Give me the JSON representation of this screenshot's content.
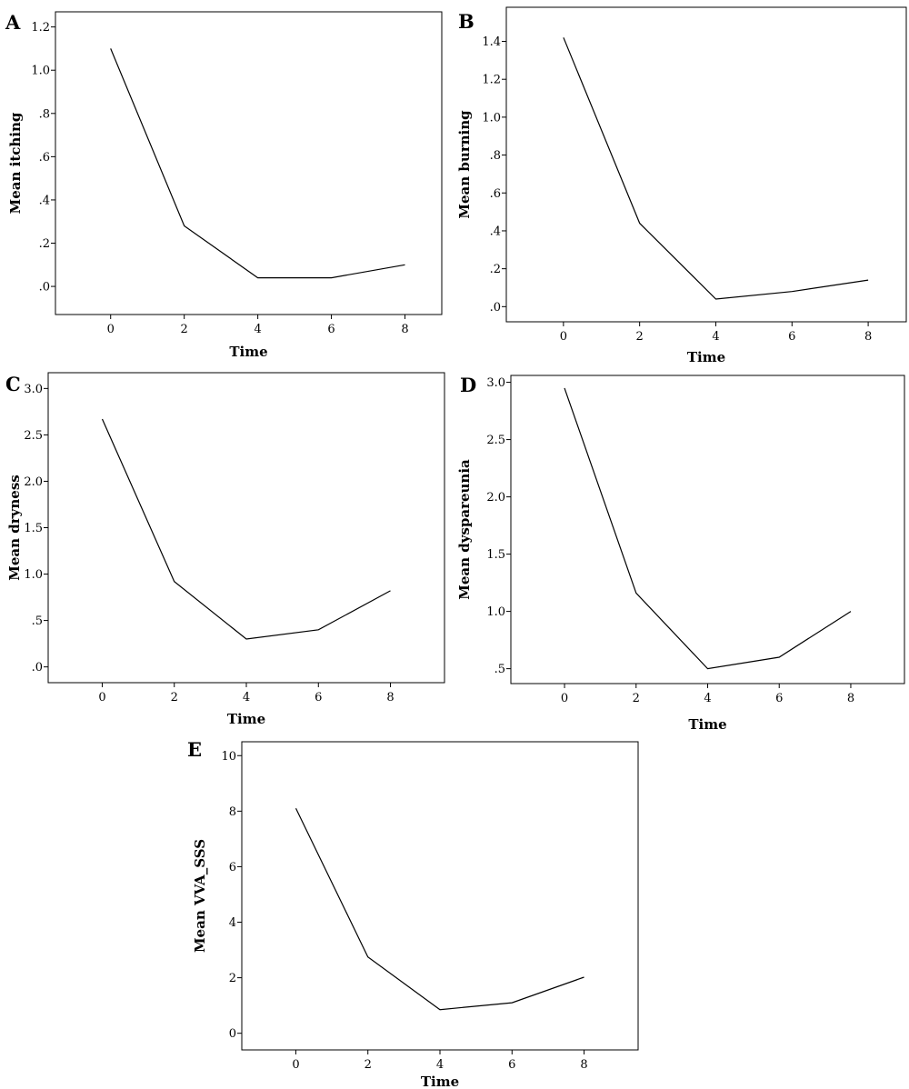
{
  "chart_data": [
    {
      "panel": "A",
      "type": "line",
      "xlabel": "Time",
      "ylabel": "Mean itching",
      "x": [
        0,
        2,
        4,
        6,
        8
      ],
      "values": [
        1.1,
        0.28,
        0.04,
        0.04,
        0.1
      ],
      "xticks": [
        0,
        2,
        4,
        6,
        8
      ],
      "xtick_labels": [
        "0",
        "2",
        "4",
        "6",
        "8"
      ],
      "xlim": [
        -1.5,
        9.0
      ],
      "yticks": [
        0.0,
        0.2,
        0.4,
        0.6,
        0.8,
        1.0,
        1.2
      ],
      "ytick_labels": [
        ".0",
        ".2",
        ".4",
        ".6",
        ".8",
        "1.0",
        "1.2"
      ],
      "ylim": [
        -0.13,
        1.27
      ],
      "grid": false
    },
    {
      "panel": "B",
      "type": "line",
      "xlabel": "Time",
      "ylabel": "Mean burning",
      "x": [
        0,
        2,
        4,
        6,
        8
      ],
      "values": [
        1.42,
        0.44,
        0.04,
        0.08,
        0.14
      ],
      "xticks": [
        0,
        2,
        4,
        6,
        8
      ],
      "xtick_labels": [
        "0",
        "2",
        "4",
        "6",
        "8"
      ],
      "xlim": [
        -1.5,
        9.0
      ],
      "yticks": [
        0.0,
        0.2,
        0.4,
        0.6,
        0.8,
        1.0,
        1.2,
        1.4
      ],
      "ytick_labels": [
        ".0",
        ".2",
        ".4",
        ".6",
        ".8",
        "1.0",
        "1.2",
        "1.4"
      ],
      "ylim": [
        -0.08,
        1.58
      ],
      "grid": false
    },
    {
      "panel": "C",
      "type": "line",
      "xlabel": "Time",
      "ylabel": "Mean dryness",
      "x": [
        0,
        2,
        4,
        6,
        8
      ],
      "values": [
        2.67,
        0.92,
        0.3,
        0.4,
        0.82
      ],
      "xticks": [
        0,
        2,
        4,
        6,
        8
      ],
      "xtick_labels": [
        "0",
        "2",
        "4",
        "6",
        "8"
      ],
      "xlim": [
        -1.5,
        9.5
      ],
      "yticks": [
        0.0,
        0.5,
        1.0,
        1.5,
        2.0,
        2.5,
        3.0
      ],
      "ytick_labels": [
        ".0",
        ".5",
        "1.0",
        "1.5",
        "2.0",
        "2.5",
        "3.0"
      ],
      "ylim": [
        -0.17,
        3.17
      ],
      "grid": false
    },
    {
      "panel": "D",
      "type": "line",
      "xlabel": "Time",
      "ylabel": "Mean dyspareunia",
      "x": [
        0,
        2,
        4,
        6,
        8
      ],
      "values": [
        2.95,
        1.16,
        0.5,
        0.6,
        1.0
      ],
      "xticks": [
        0,
        2,
        4,
        6,
        8
      ],
      "xtick_labels": [
        "0",
        "2",
        "4",
        "6",
        "8"
      ],
      "xlim": [
        -1.5,
        9.5
      ],
      "yticks": [
        0.5,
        1.0,
        1.5,
        2.0,
        2.5,
        3.0
      ],
      "ytick_labels": [
        ".5",
        "1.0",
        "1.5",
        "2.0",
        "2.5",
        "3.0"
      ],
      "ylim": [
        0.37,
        3.06
      ],
      "grid": false
    },
    {
      "panel": "E",
      "type": "line",
      "xlabel": "Time",
      "ylabel": "Mean VVA_SSS",
      "x": [
        0,
        2,
        4,
        6,
        8
      ],
      "values": [
        8.1,
        2.75,
        0.85,
        1.1,
        2.02
      ],
      "xticks": [
        0,
        2,
        4,
        6,
        8
      ],
      "xtick_labels": [
        "0",
        "2",
        "4",
        "6",
        "8"
      ],
      "xlim": [
        -1.5,
        9.5
      ],
      "yticks": [
        0,
        2,
        4,
        6,
        8,
        10
      ],
      "ytick_labels": [
        "0",
        "2",
        "4",
        "6",
        "8",
        "10"
      ],
      "ylim": [
        -0.6,
        10.5
      ],
      "grid": false
    }
  ]
}
